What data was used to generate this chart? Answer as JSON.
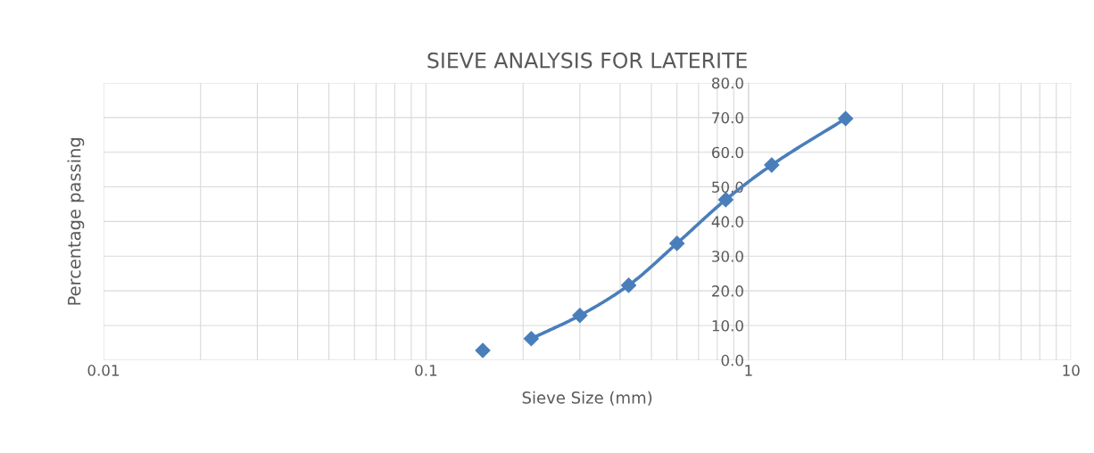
{
  "chart_data": {
    "type": "line",
    "title": "SIEVE ANALYSIS FOR LATERITE",
    "xlabel": "Sieve Size (mm)",
    "ylabel": "Percentage passing",
    "series": [
      {
        "type": "scatter",
        "color": "#4a7ebb",
        "x": [
          0.15
        ],
        "values": [
          2.8
        ]
      },
      {
        "color": "#4a7ebb",
        "x": [
          0.212,
          0.3,
          0.425,
          0.6,
          0.85,
          1.18,
          2.0
        ],
        "values": [
          6.2,
          12.9,
          21.6,
          33.7,
          46.3,
          56.3,
          69.7
        ]
      }
    ],
    "log": "x",
    "xlim": [
      0.01,
      10
    ],
    "xticks": [
      0.01,
      0.1,
      1,
      10
    ],
    "ylim": [
      0,
      80
    ],
    "yticks": [
      {
        "value": 0,
        "label": "0.0"
      },
      {
        "value": 10,
        "label": "10.0"
      },
      {
        "value": 20,
        "label": "20.0"
      },
      {
        "value": 30,
        "label": "30.0"
      },
      {
        "value": 40,
        "label": "40.0"
      },
      {
        "value": 50,
        "label": "50.0"
      },
      {
        "value": 60,
        "label": "60.0"
      },
      {
        "value": 70,
        "label": "70.0"
      },
      {
        "value": 80,
        "label": "80.0"
      }
    ],
    "grid": true,
    "marker": "diamond",
    "line_style": "solid"
  }
}
